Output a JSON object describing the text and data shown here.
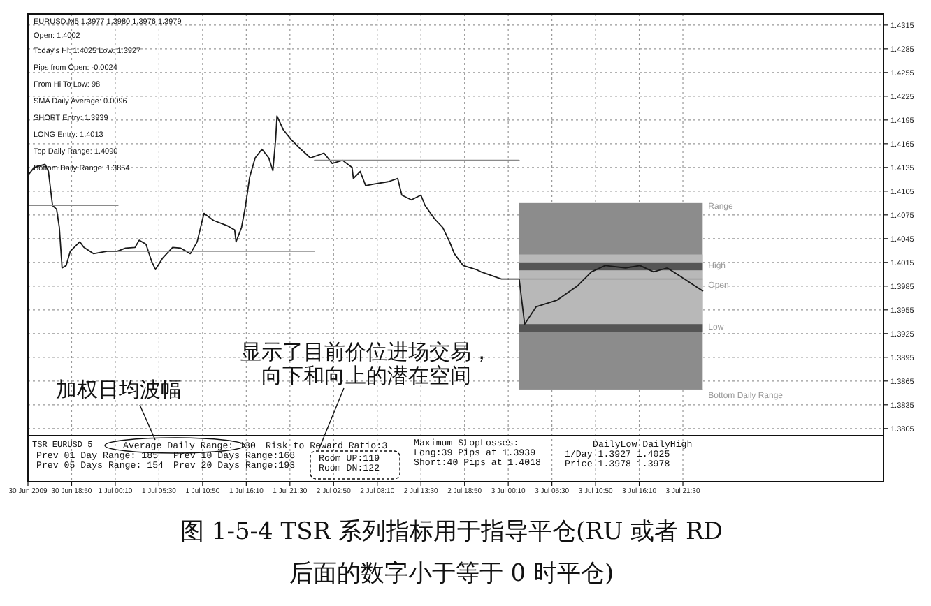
{
  "chart_data": {
    "type": "line",
    "title": "图 1-5-4 TSR 系列指标用于指导平仓(RU 或者 RD 后面的数字小于等于 0 时平仓)",
    "annotations": [
      "EURUSD,M5 1.3977 1.3980 1.3976 1.3979",
      "Open: 1.4002",
      "Today's Hi: 1.4025  Low: 1.3927",
      "Pips from Open: -0.0024",
      "From Hi To Low: 98",
      "SMA Daily Average: 0.0096",
      "SHORT Entry: 1.3939",
      "LONG Entry: 1.4013",
      "Top Daily Range: 1.4090",
      "Bottom Daily Range: 1.3854",
      "TSR EURUSD 5",
      "Average Daily Range: 130",
      "Risk to Reward Ratio:3",
      "Prev 01 Day Range:  185",
      "Prev 05 Days Range:  154",
      "Prev 10 Days Range:168",
      "Prev 20 Days Range:193",
      "Room UP:119",
      "Room DN:122",
      "Maximum StopLosses:",
      "Long:39  Pips at 1.3939",
      "Short:40  Pips at 1.4018",
      "DailyLow DailyHigh",
      "1/Day  1.3927 1.4025",
      "Price  1.3978 1.3978",
      "加权日均波幅",
      "显示了目前价位进场交易，",
      "向下和向上的潜在空间"
    ],
    "xlim": [
      "2009-06-30T13:30",
      "2009-07-04T22:00"
    ],
    "xticks": [
      {
        "value": "2009-06-30T13:30",
        "label": "30 Jun 2009"
      },
      {
        "value": "2009-06-30T18:50",
        "label": "30 Jun 18:50"
      },
      {
        "value": "2009-07-01T00:10",
        "label": "1 Jul 00:10"
      },
      {
        "value": "2009-07-01T05:30",
        "label": "1 Jul 05:30"
      },
      {
        "value": "2009-07-01T10:50",
        "label": "1 Jul 10:50"
      },
      {
        "value": "2009-07-01T16:10",
        "label": "1 Jul 16:10"
      },
      {
        "value": "2009-07-01T21:30",
        "label": "1 Jul 21:30"
      },
      {
        "value": "2009-07-02T02:50",
        "label": "2 Jul 02:50"
      },
      {
        "value": "2009-07-02T08:10",
        "label": "2 Jul 08:10"
      },
      {
        "value": "2009-07-02T13:30",
        "label": "2 Jul 13:30"
      },
      {
        "value": "2009-07-02T18:50",
        "label": "2 Jul 18:50"
      },
      {
        "value": "2009-07-03T00:10",
        "label": "3 Jul 00:10"
      },
      {
        "value": "2009-07-03T05:30",
        "label": "3 Jul 05:30"
      },
      {
        "value": "2009-07-03T10:50",
        "label": "3 Jul 10:50"
      },
      {
        "value": "2009-07-03T16:10",
        "label": "3 Jul 16:10"
      },
      {
        "value": "2009-07-03T21:30",
        "label": "3 Jul 21:30"
      }
    ],
    "ylim": [
      1.3796,
      1.4329
    ],
    "yticks": [
      1.4315,
      1.4285,
      1.4255,
      1.4225,
      1.4195,
      1.4165,
      1.4135,
      1.4105,
      1.4075,
      1.4045,
      1.4015,
      1.3985,
      1.3955,
      1.3925,
      1.3895,
      1.3865,
      1.3835,
      1.3805
    ],
    "grid": true,
    "bands": [
      {
        "axis": "y",
        "from": 1.3854,
        "to": 1.409,
        "label": "Range",
        "color": "#8c8c8c"
      },
      {
        "axis": "y",
        "from": 1.3927,
        "to": 1.4025,
        "label": null,
        "color": "#b8b8b8"
      },
      {
        "axis": "y",
        "from": 1.4005,
        "to": 1.4015,
        "label": "High",
        "color": "#555555"
      },
      {
        "axis": "y",
        "from": 1.3927,
        "to": 1.3937,
        "label": "Low",
        "color": "#555555"
      }
    ],
    "ref_lines": [
      {
        "axis": "y",
        "value": 1.3994,
        "label": "Open",
        "color": "#9a9a9a"
      },
      {
        "axis": "y",
        "value": 1.3854,
        "label": "Bottom Daily Range",
        "color": "#9a9a9a"
      }
    ],
    "series": [
      {
        "color": "#1a1a1a",
        "x": [
          "2009-06-30T13:35",
          "2009-06-30T14:15",
          "2009-06-30T15:35",
          "2009-06-30T16:00",
          "2009-06-30T16:30",
          "2009-06-30T17:00",
          "2009-06-30T17:20",
          "2009-06-30T17:40",
          "2009-06-30T18:10",
          "2009-06-30T18:40",
          "2009-06-30T19:50",
          "2009-06-30T20:20",
          "2009-06-30T21:30",
          "2009-06-30T23:10",
          "2009-07-01T00:25",
          "2009-07-01T01:25",
          "2009-07-01T02:35",
          "2009-07-01T03:05",
          "2009-07-01T03:55",
          "2009-07-01T04:35",
          "2009-07-01T05:05",
          "2009-07-01T05:55",
          "2009-07-01T07:10",
          "2009-07-01T08:10",
          "2009-07-01T09:20",
          "2009-07-01T10:10",
          "2009-07-01T11:00",
          "2009-07-01T12:10",
          "2009-07-01T13:55",
          "2009-07-01T14:45",
          "2009-07-01T14:55",
          "2009-07-01T15:35",
          "2009-07-01T16:05",
          "2009-07-01T16:35",
          "2009-07-01T17:15",
          "2009-07-01T18:05",
          "2009-07-01T18:55",
          "2009-07-01T19:25",
          "2009-07-01T19:45",
          "2009-07-01T19:55",
          "2009-07-01T20:40",
          "2009-07-01T21:40",
          "2009-07-01T22:50",
          "2009-07-02T00:00",
          "2009-07-02T01:40",
          "2009-07-02T02:40",
          "2009-07-02T03:55",
          "2009-07-02T05:05",
          "2009-07-02T05:15",
          "2009-07-02T06:05",
          "2009-07-02T06:45",
          "2009-07-02T07:45",
          "2009-07-02T09:30",
          "2009-07-02T10:40",
          "2009-07-02T11:10",
          "2009-07-02T12:20",
          "2009-07-02T13:30",
          "2009-07-02T14:00",
          "2009-07-02T15:10",
          "2009-07-02T16:10",
          "2009-07-02T17:00",
          "2009-07-02T17:35",
          "2009-07-02T18:40",
          "2009-07-02T20:15",
          "2009-07-02T20:50",
          "2009-07-02T23:20",
          "2009-07-03T01:30",
          "2009-07-03T02:10",
          "2009-07-03T03:35",
          "2009-07-03T06:05",
          "2009-07-03T08:35",
          "2009-07-03T10:20",
          "2009-07-03T12:00",
          "2009-07-03T14:30",
          "2009-07-03T16:15",
          "2009-07-03T17:55",
          "2009-07-03T19:35",
          "2009-07-03T21:15",
          "2009-07-03T23:00",
          "2009-07-03T23:55"
        ],
        "values": [
          1.4126,
          1.4135,
          1.4139,
          1.413,
          1.4087,
          1.4082,
          1.4059,
          1.4008,
          1.4011,
          1.4029,
          1.4041,
          1.4034,
          1.4026,
          1.4029,
          1.4029,
          1.4033,
          1.4034,
          1.4043,
          1.4038,
          1.4017,
          1.4006,
          1.402,
          1.4034,
          1.4033,
          1.4026,
          1.4041,
          1.4077,
          1.4068,
          1.4061,
          1.4056,
          1.4041,
          1.4059,
          1.4087,
          1.4123,
          1.4147,
          1.4158,
          1.4147,
          1.4131,
          1.417,
          1.42,
          1.4183,
          1.417,
          1.4158,
          1.4147,
          1.4153,
          1.414,
          1.4144,
          1.4135,
          1.4121,
          1.413,
          1.4112,
          1.4114,
          1.4117,
          1.4121,
          1.41,
          1.4094,
          1.41,
          1.4087,
          1.407,
          1.4059,
          1.4041,
          1.4026,
          1.4011,
          1.4006,
          1.4003,
          1.3994,
          1.3994,
          1.3937,
          1.3959,
          1.3967,
          1.3985,
          1.4003,
          1.4011,
          1.4008,
          1.4011,
          1.4003,
          1.4008,
          1.3997,
          1.3985,
          1.3979
        ]
      },
      {
        "color": "#8a8a8a",
        "x": [
          "2009-06-30T13:30",
          "2009-07-01T00:30"
        ],
        "values": [
          1.4087,
          1.4087
        ]
      },
      {
        "color": "#8a8a8a",
        "x": [
          "2009-07-01T00:30",
          "2009-07-02T00:30"
        ],
        "values": [
          1.4029,
          1.4029
        ]
      },
      {
        "color": "#8a8a8a",
        "x": [
          "2009-07-02T00:30",
          "2009-07-03T01:30"
        ],
        "values": [
          1.4144,
          1.4144
        ]
      }
    ]
  }
}
